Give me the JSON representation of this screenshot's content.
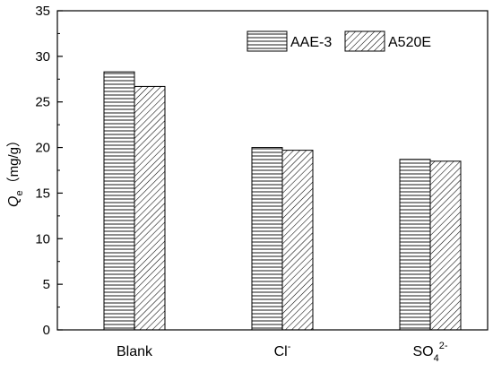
{
  "chart_data": {
    "type": "bar",
    "categories": [
      {
        "base": "Blank",
        "sup": "",
        "sub": "",
        "sup2": ""
      },
      {
        "base": "Cl",
        "sup": "-",
        "sub": "",
        "sup2": ""
      },
      {
        "base": "SO",
        "sup": "",
        "sub": "4",
        "sup2": "2-"
      }
    ],
    "series": [
      {
        "name": "AAE-3",
        "values": [
          28.3,
          20.0,
          18.7
        ],
        "pattern": "horizontal-lines"
      },
      {
        "name": "A520E",
        "values": [
          26.7,
          19.7,
          18.5
        ],
        "pattern": "diagonal-lines"
      }
    ],
    "ylabel": {
      "symbol": "Q",
      "subscript": "e",
      "unit": "（mg/g）"
    },
    "xlabel": "",
    "ylim": [
      0,
      35
    ],
    "yticks": [
      0,
      5,
      10,
      15,
      20,
      25,
      30,
      35
    ],
    "legend_position": "top-right",
    "grid": false,
    "colors": {
      "axis": "#000000",
      "bar_fill": "#ffffff",
      "pattern": "#000000"
    }
  }
}
